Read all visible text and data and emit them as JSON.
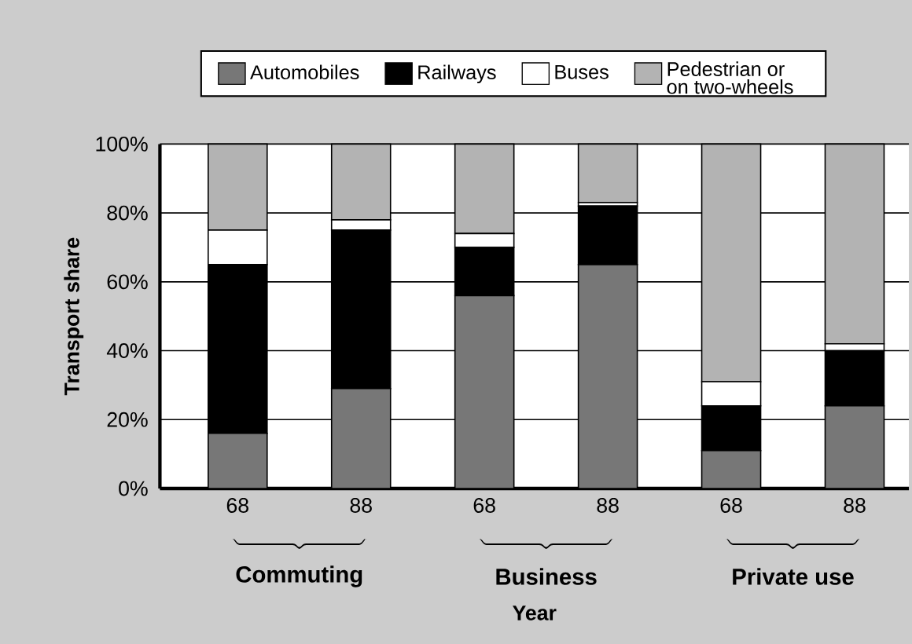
{
  "chart_data": {
    "type": "bar",
    "stacked": true,
    "xlabel": "Year",
    "ylabel": "Transport share",
    "categories": [
      "68",
      "88",
      "68",
      "88",
      "68",
      "88"
    ],
    "series": [
      {
        "name": "Automobiles",
        "color": "#777777",
        "values": [
          16,
          29,
          56,
          65,
          11,
          24
        ]
      },
      {
        "name": "Railways",
        "color": "#000000",
        "values": [
          49,
          46,
          14,
          17,
          13,
          16
        ]
      },
      {
        "name": "Buses",
        "color": "#ffffff",
        "values": [
          10,
          3,
          4,
          1,
          7,
          2
        ]
      },
      {
        "name": "Pedestrian or on two-wheels",
        "color": "#b3b3b3",
        "values": [
          25,
          22,
          26,
          17,
          69,
          58
        ]
      }
    ],
    "ylim": [
      0,
      100
    ],
    "yticks": [
      {
        "value": 0,
        "label": "0%"
      },
      {
        "value": 20,
        "label": "20%"
      },
      {
        "value": 40,
        "label": "40%"
      },
      {
        "value": 60,
        "label": "60%"
      },
      {
        "value": 80,
        "label": "80%"
      },
      {
        "value": 100,
        "label": "100%"
      }
    ],
    "grid": "y",
    "legend": "top",
    "annotations": [
      "Commuting",
      "Business",
      "Private use"
    ]
  }
}
